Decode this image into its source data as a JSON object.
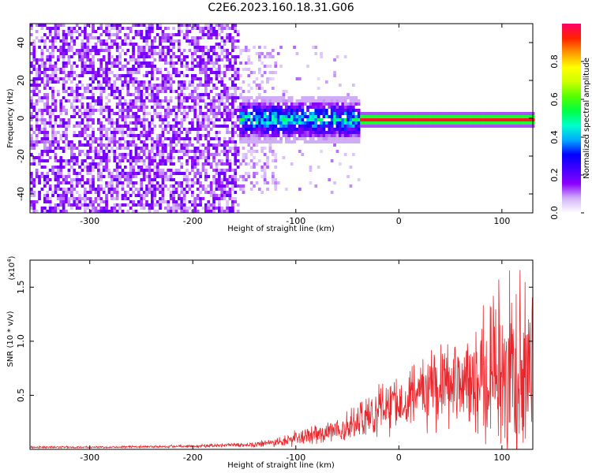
{
  "figure_title": "C2E6.2023.160.18.31.G06",
  "chart_data": [
    {
      "type": "heatmap",
      "title": "C2E6.2023.160.18.31.G06",
      "xlabel": "Height of straight line (km)",
      "ylabel": "Frequency (Hz)",
      "xlim": [
        -358,
        130
      ],
      "ylim": [
        -50,
        50
      ],
      "xticks": [
        -300,
        -200,
        -100,
        0,
        100
      ],
      "xtick_labels": [
        "-300",
        "-200",
        "-100",
        "0",
        "100"
      ],
      "yticks": [
        -40,
        -20,
        0,
        20,
        40
      ],
      "ytick_labels": [
        "-40",
        "-20",
        "0",
        "20",
        "40"
      ],
      "colorbar": {
        "label": "Normalized spectral amplitude",
        "range": [
          0,
          1
        ],
        "ticks": [
          0.0,
          0.2,
          0.4,
          0.6,
          0.8
        ],
        "tick_labels": [
          "0.0",
          "0.2",
          "0.4",
          "0.6",
          "0.8"
        ],
        "colormap": [
          "#ffffff",
          "#d3b3f7",
          "#8b00ff",
          "#4400ff",
          "#0000ff",
          "#00aaff",
          "#00ffcc",
          "#00ff44",
          "#55ff00",
          "#ccff00",
          "#ffff00",
          "#ff9900",
          "#ff2200",
          "#ff0066"
        ]
      },
      "description_regions": [
        {
          "x_range": [
            -358,
            -155
          ],
          "freq_halfwidth": 50,
          "amplitude_range": [
            0.0,
            0.12
          ]
        },
        {
          "x_range": [
            -155,
            -40
          ],
          "freq_halfwidth": 12,
          "amplitude_range": [
            0.05,
            0.5
          ]
        },
        {
          "x_range": [
            -40,
            130
          ],
          "freq_halfwidth": 3,
          "amplitude_range": [
            0.6,
            0.95
          ]
        }
      ]
    },
    {
      "type": "line",
      "xlabel": "Height of straight line (km)",
      "ylabel": "SNR (10 * v/v)",
      "y_multiplier_label": "(x10",
      "y_multiplier_exp": "4",
      "y_multiplier_close": ")",
      "xlim": [
        -358,
        130
      ],
      "ylim": [
        0,
        1.75
      ],
      "xticks": [
        -300,
        -200,
        -100,
        0,
        100
      ],
      "xtick_labels": [
        "-300",
        "-200",
        "-100",
        "0",
        "100"
      ],
      "yticks": [
        0.5,
        1.0,
        1.5
      ],
      "ytick_labels": [
        "0.5",
        "1.0",
        "1.5"
      ],
      "series": [
        {
          "color": "#e8262b",
          "x": [
            -358,
            -300,
            -250,
            -200,
            -150,
            -120,
            -100,
            -80,
            -60,
            -40,
            -20,
            0,
            20,
            40,
            60,
            80,
            100,
            120,
            130
          ],
          "y": [
            0.02,
            0.02,
            0.025,
            0.03,
            0.04,
            0.06,
            0.1,
            0.14,
            0.18,
            0.25,
            0.36,
            0.45,
            0.55,
            0.6,
            0.62,
            0.68,
            0.75,
            0.7,
            0.7
          ],
          "y_spread": [
            0.01,
            0.01,
            0.01,
            0.015,
            0.02,
            0.04,
            0.08,
            0.1,
            0.12,
            0.2,
            0.25,
            0.3,
            0.3,
            0.45,
            0.4,
            0.6,
            0.85,
            0.9,
            0.9
          ]
        }
      ]
    }
  ]
}
